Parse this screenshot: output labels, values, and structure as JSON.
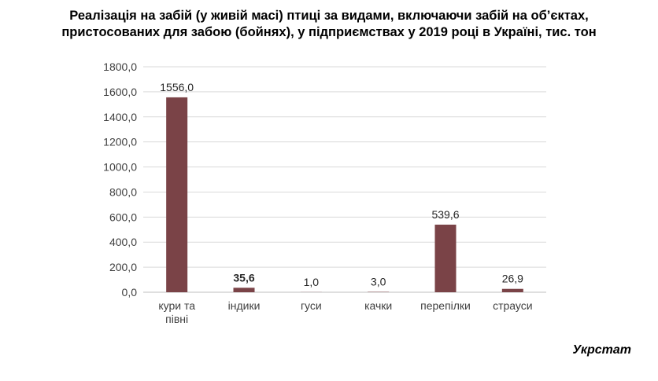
{
  "title_lines": [
    "Реалізація на забій (у живій масі) птиці за видами, включаючи забій на об’єктах,",
    "пристосованих для забою (бойнях), у підприємствах у 2019 році в Україні, тис. тон"
  ],
  "source": "Укрстат",
  "chart_data": {
    "type": "bar",
    "title": "Реалізація на забій (у живій масі) птиці за видами, включаючи забій на об’єктах, пристосованих для забою (бойнях), у підприємствах у 2019 році в Україні, тис. тон",
    "categories": [
      [
        "кури та",
        "півні"
      ],
      [
        "індики"
      ],
      [
        "гуси"
      ],
      [
        "качки"
      ],
      [
        "перепілки"
      ],
      [
        "страуси"
      ]
    ],
    "values": [
      1556.0,
      35.6,
      1.0,
      3.0,
      539.6,
      26.9
    ],
    "data_labels": [
      "1556,0",
      "35,6",
      "1,0",
      "3,0",
      "539,6",
      "26,9"
    ],
    "bold_labels": [
      false,
      true,
      false,
      false,
      false,
      false
    ],
    "ylim": [
      0,
      1800
    ],
    "yticks": [
      0,
      200,
      400,
      600,
      800,
      1000,
      1200,
      1400,
      1600,
      1800
    ],
    "ytick_labels": [
      "0,0",
      "200,0",
      "400,0",
      "600,0",
      "800,0",
      "1000,0",
      "1200,0",
      "1400,0",
      "1600,0",
      "1800,0"
    ],
    "grid": true,
    "legend": "none",
    "bar_color": "#7a4347",
    "grid_color": "#d9d9d9"
  }
}
